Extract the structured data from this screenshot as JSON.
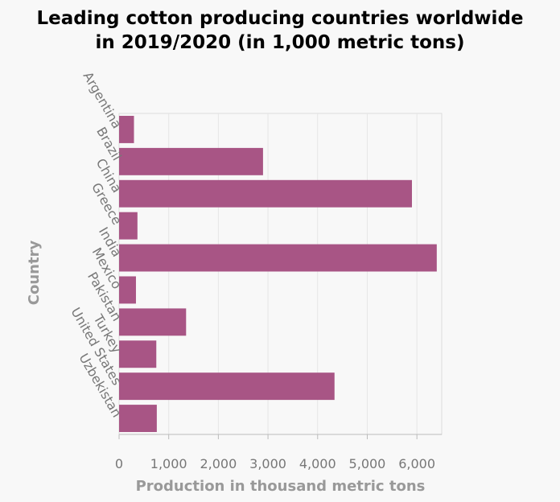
{
  "chart_data": {
    "type": "bar",
    "orientation": "horizontal",
    "title_line1": "Leading cotton producing countries worldwide",
    "title_line2": "in 2019/2020 (in 1,000 metric tons)",
    "xlabel": "Production in thousand metric tons",
    "ylabel": "Country",
    "categories": [
      "Argentina",
      "Brazil",
      "China",
      "Greece",
      "India",
      "Mexico",
      "Pakistan",
      "Turkey",
      "United States",
      "Uzbekistan"
    ],
    "values": [
      300,
      2900,
      5900,
      370,
      6400,
      340,
      1350,
      750,
      4340,
      760
    ],
    "xlim": [
      0,
      6500
    ],
    "xticks": [
      0,
      1000,
      2000,
      3000,
      4000,
      5000,
      6000
    ],
    "xtick_labels": [
      "0",
      "1,000",
      "2,000",
      "3,000",
      "4,000",
      "5,000",
      "6,000"
    ],
    "grid": "vertical",
    "bar_color": "#a85585"
  }
}
